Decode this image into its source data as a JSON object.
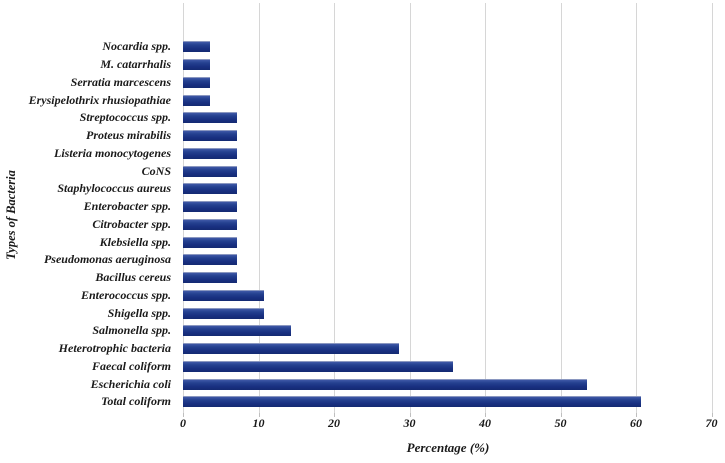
{
  "chart_data": {
    "type": "bar",
    "orientation": "horizontal",
    "title": "",
    "xlabel": "Percentage (%)",
    "ylabel": "Types of Bacteria",
    "xlim": [
      0,
      70
    ],
    "xticks": [
      0,
      10,
      20,
      30,
      40,
      50,
      60,
      70
    ],
    "grid": true,
    "legend": "none",
    "categories": [
      "Nocardia spp.",
      "M. catarrhalis",
      "Serratia marcescens",
      "Erysipelothrix rhusiopathiae",
      "Streptococcus spp.",
      "Proteus mirabilis",
      "Listeria monocytogenes",
      "CoNS",
      "Staphylococcus aureus",
      "Enterobacter spp.",
      "Citrobacter spp.",
      "Klebsiella spp.",
      "Pseudomonas aeruginosa",
      "Bacillus cereus",
      "Enterococcus spp.",
      "Shigella spp.",
      "Salmonella spp.",
      "Heterotrophic bacteria",
      "Faecal coliform",
      "Escherichia coli",
      "Total coliform"
    ],
    "values": [
      3.57,
      3.57,
      3.57,
      3.57,
      7.14,
      7.14,
      7.14,
      7.14,
      7.14,
      7.14,
      7.14,
      7.14,
      7.14,
      7.14,
      10.71,
      10.71,
      14.29,
      28.57,
      35.71,
      53.57,
      60.71
    ],
    "colors": {
      "bar_top": "#3f58a7",
      "bar_bottom": "#142a72",
      "bar_outline": "#8a97c0",
      "gridline": "#d6d6d6",
      "tick": "#bfbfbf",
      "text": "#1a1a1a",
      "background": "#ffffff"
    }
  }
}
